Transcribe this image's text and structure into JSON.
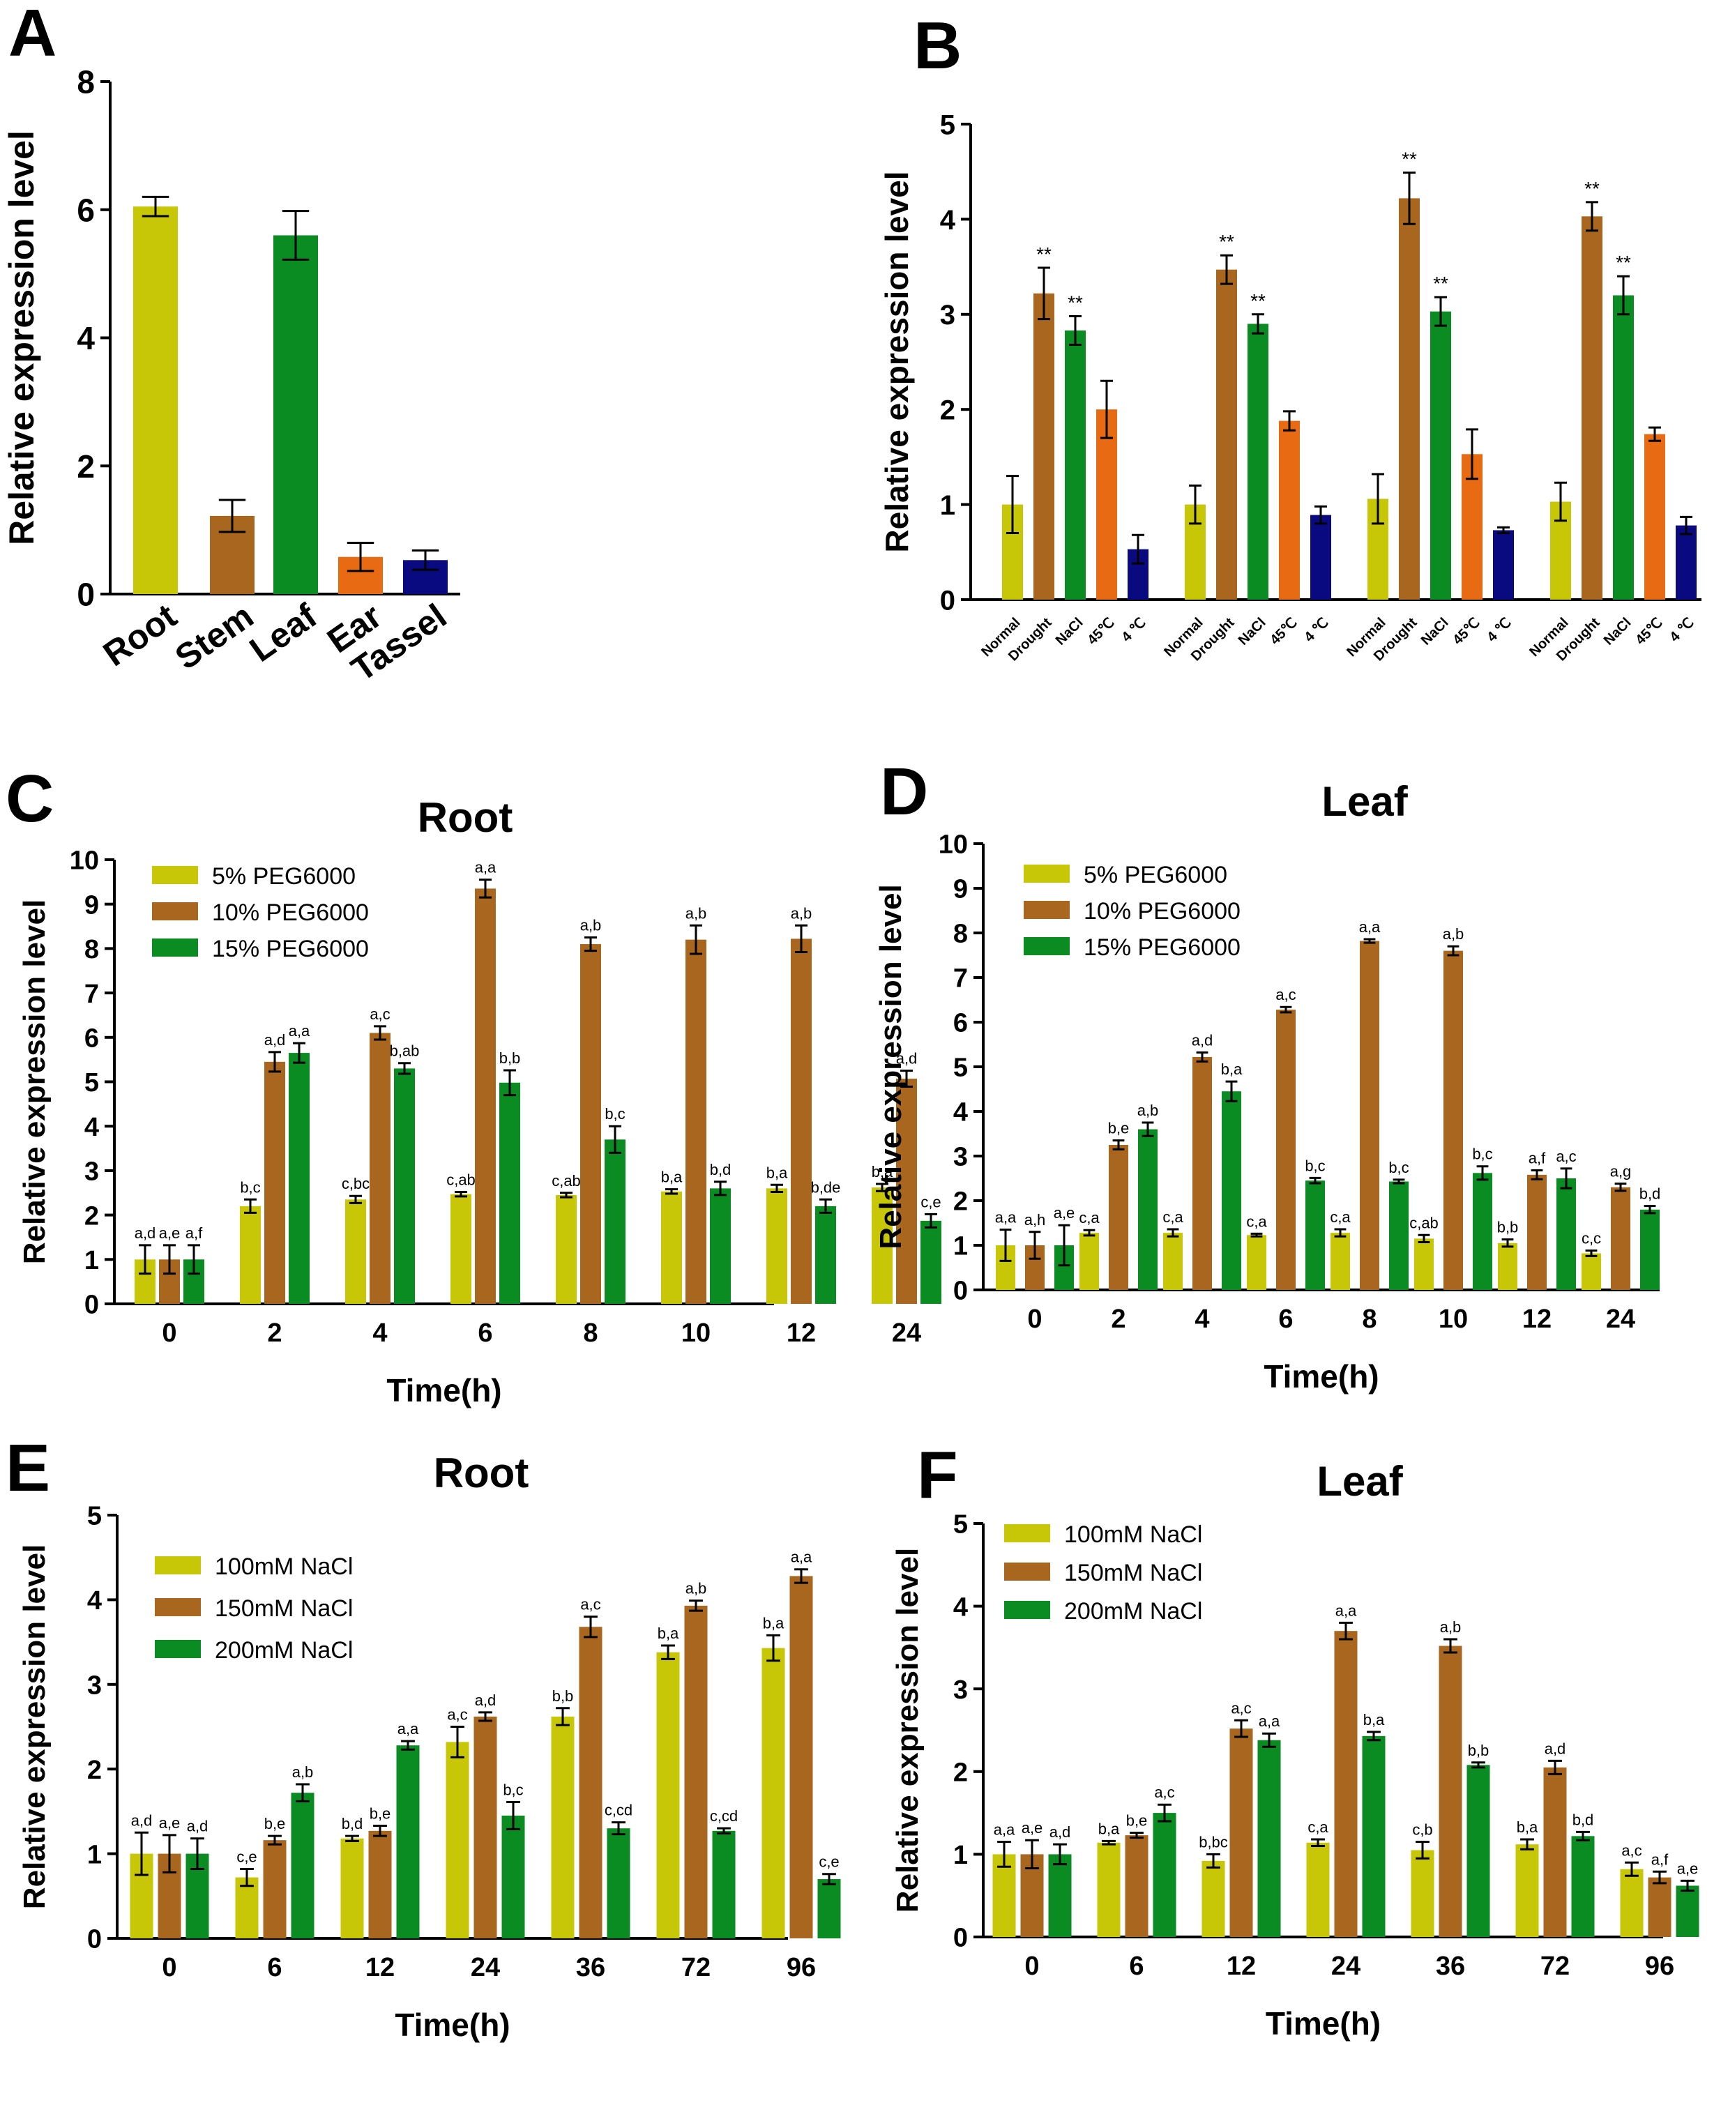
{
  "colors": {
    "yellow": "#c7c708",
    "brown": "#a8661e",
    "green": "#0a8c22",
    "orange": "#e86a12",
    "navy": "#0a0a80",
    "axis": "#000000"
  },
  "chart_data": [
    {
      "panel": "A",
      "type": "bar",
      "title": "",
      "xlabel": "",
      "ylabel": "Relative expression level",
      "ylim": [
        0,
        8
      ],
      "yticks": [
        "0",
        "2",
        "4",
        "6",
        "8"
      ],
      "categories": [
        "Root",
        "Stem",
        "Leaf",
        "Ear",
        "Tassel"
      ],
      "values": [
        6.05,
        1.22,
        5.6,
        0.58,
        0.53
      ],
      "errors": [
        0.15,
        0.25,
        0.38,
        0.22,
        0.15
      ],
      "bar_colors": [
        "#c7c708",
        "#a8661e",
        "#0a8c22",
        "#e86a12",
        "#0a0a80"
      ]
    },
    {
      "panel": "B",
      "type": "bar",
      "title": "",
      "xlabel": "",
      "ylabel": "Relative expression level",
      "ylim": [
        0,
        5
      ],
      "yticks": [
        "0",
        "1",
        "2",
        "3",
        "4",
        "5"
      ],
      "group_count": 4,
      "categories": [
        "Normal",
        "Drought",
        "NaCl",
        "45℃",
        "4 ℃"
      ],
      "series_colors": [
        "#c7c708",
        "#a8661e",
        "#0a8c22",
        "#e86a12",
        "#0a0a80"
      ],
      "groups": [
        {
          "values": [
            1.0,
            3.22,
            2.83,
            2.0,
            0.53
          ],
          "errors": [
            0.3,
            0.27,
            0.15,
            0.3,
            0.15
          ],
          "marks": [
            "",
            "**",
            "**",
            "",
            ""
          ]
        },
        {
          "values": [
            1.0,
            3.47,
            2.9,
            1.88,
            0.89
          ],
          "errors": [
            0.2,
            0.15,
            0.1,
            0.1,
            0.09
          ],
          "marks": [
            "",
            "**",
            "**",
            "",
            ""
          ]
        },
        {
          "values": [
            1.06,
            4.22,
            3.03,
            1.53,
            0.73
          ],
          "errors": [
            0.26,
            0.27,
            0.15,
            0.26,
            0.03
          ],
          "marks": [
            "",
            "**",
            "**",
            "",
            ""
          ]
        },
        {
          "values": [
            1.03,
            4.03,
            3.2,
            1.74,
            0.78
          ],
          "errors": [
            0.2,
            0.15,
            0.2,
            0.07,
            0.09
          ],
          "marks": [
            "",
            "**",
            "**",
            "",
            ""
          ]
        }
      ]
    },
    {
      "panel": "C",
      "type": "bar",
      "title": "Root",
      "xlabel": "Time(h)",
      "ylabel": "Relative expression level",
      "ylim": [
        0,
        10
      ],
      "yticks": [
        "0",
        "1",
        "2",
        "3",
        "4",
        "5",
        "6",
        "7",
        "8",
        "9",
        "10"
      ],
      "categories": [
        "0",
        "2",
        "4",
        "6",
        "8",
        "10",
        "12",
        "24"
      ],
      "series": [
        {
          "name": "5% PEG6000",
          "color": "#c7c708",
          "values": [
            1.0,
            2.2,
            2.35,
            2.47,
            2.45,
            2.53,
            2.6,
            2.62
          ],
          "errors": [
            0.32,
            0.15,
            0.08,
            0.05,
            0.05,
            0.05,
            0.08,
            0.08
          ],
          "labels": [
            "a,d",
            "b,c",
            "c,bc",
            "c,ab",
            "c,ab",
            "b,a",
            "b,a",
            "b,a"
          ]
        },
        {
          "name": "10% PEG6000",
          "color": "#a8661e",
          "values": [
            1.0,
            5.45,
            6.1,
            9.35,
            8.1,
            8.2,
            8.22,
            5.07
          ],
          "errors": [
            0.32,
            0.22,
            0.15,
            0.2,
            0.15,
            0.32,
            0.3,
            0.18
          ],
          "labels": [
            "a,e",
            "a,d",
            "a,c",
            "a,a",
            "a,b",
            "a,b",
            "a,b",
            "a,d"
          ]
        },
        {
          "name": "15% PEG6000",
          "color": "#0a8c22",
          "values": [
            1.0,
            5.65,
            5.3,
            4.98,
            3.7,
            2.6,
            2.2,
            1.87
          ],
          "errors": [
            0.32,
            0.22,
            0.12,
            0.28,
            0.3,
            0.15,
            0.15,
            0.15
          ],
          "labels": [
            "a,f",
            "a,a",
            "b,ab",
            "b,b",
            "b,c",
            "b,d",
            "b,de",
            "c,e"
          ]
        }
      ]
    },
    {
      "panel": "D",
      "type": "bar",
      "title": "Leaf",
      "xlabel": "Time(h)",
      "ylabel": "Relative expression level",
      "ylim": [
        0,
        10
      ],
      "yticks": [
        "0",
        "1",
        "2",
        "3",
        "4",
        "5",
        "6",
        "7",
        "8",
        "9",
        "10"
      ],
      "categories": [
        "0",
        "2",
        "4",
        "6",
        "8",
        "10",
        "12",
        "24"
      ],
      "series": [
        {
          "name": "5% PEG6000",
          "color": "#c7c708",
          "values": [
            1.0,
            1.28,
            1.28,
            1.23,
            1.28,
            1.15,
            1.05,
            0.82
          ],
          "errors": [
            0.35,
            0.06,
            0.08,
            0.03,
            0.08,
            0.08,
            0.08,
            0.06
          ],
          "labels": [
            "a,a",
            "c,a",
            "c,a",
            "c,a",
            "c,a",
            "c,ab",
            "b,b",
            "c,c"
          ]
        },
        {
          "name": "10% PEG6000",
          "color": "#a8661e",
          "values": [
            1.0,
            3.25,
            5.22,
            6.28,
            7.82,
            7.6,
            2.58,
            2.3
          ],
          "errors": [
            0.3,
            0.1,
            0.1,
            0.06,
            0.04,
            0.1,
            0.1,
            0.08
          ],
          "labels": [
            "a,h",
            "b,e",
            "a,d",
            "a,c",
            "a,a",
            "a,b",
            "a,f",
            "a,g"
          ]
        },
        {
          "name": "15% PEG6000",
          "color": "#0a8c22",
          "values": [
            1.0,
            3.6,
            4.45,
            2.45,
            2.43,
            2.62,
            2.5,
            1.8
          ],
          "errors": [
            0.45,
            0.15,
            0.22,
            0.06,
            0.04,
            0.15,
            0.22,
            0.08
          ],
          "labels": [
            "a,e",
            "a,b",
            "b,a",
            "b,c",
            "b,c",
            "b,c",
            "a,c",
            "b,d"
          ]
        }
      ]
    },
    {
      "panel": "E",
      "type": "bar",
      "title": "Root",
      "xlabel": "Time(h)",
      "ylabel": "Relative expression level",
      "ylim": [
        0,
        5
      ],
      "yticks": [
        "0",
        "1",
        "2",
        "3",
        "4",
        "5"
      ],
      "categories": [
        "0",
        "6",
        "12",
        "24",
        "36",
        "72",
        "96"
      ],
      "series": [
        {
          "name": "100mM NaCl",
          "color": "#c7c708",
          "values": [
            1.0,
            0.72,
            1.18,
            2.32,
            2.62,
            3.38,
            3.43
          ],
          "errors": [
            0.25,
            0.1,
            0.03,
            0.18,
            0.1,
            0.08,
            0.15
          ],
          "labels": [
            "a,d",
            "c,e",
            "b,d",
            "a,c",
            "b,b",
            "b,a",
            "b,a"
          ]
        },
        {
          "name": "150mM NaCl",
          "color": "#a8661e",
          "values": [
            1.0,
            1.16,
            1.27,
            2.62,
            3.68,
            3.93,
            4.28
          ],
          "errors": [
            0.22,
            0.05,
            0.06,
            0.05,
            0.12,
            0.06,
            0.08
          ],
          "labels": [
            "a,e",
            "b,e",
            "b,e",
            "a,d",
            "a,c",
            "a,b",
            "a,a"
          ]
        },
        {
          "name": "200mM NaCl",
          "color": "#0a8c22",
          "values": [
            1.0,
            1.72,
            2.28,
            1.45,
            1.3,
            1.27,
            0.7
          ],
          "errors": [
            0.18,
            0.1,
            0.05,
            0.16,
            0.07,
            0.03,
            0.06
          ],
          "labels": [
            "a,d",
            "a,b",
            "a,a",
            "b,c",
            "c,cd",
            "c,cd",
            "c,e"
          ]
        }
      ]
    },
    {
      "panel": "F",
      "type": "bar",
      "title": "Leaf",
      "xlabel": "Time(h)",
      "ylabel": "Relative expression level",
      "ylim": [
        0,
        5
      ],
      "yticks": [
        "0",
        "1",
        "2",
        "3",
        "4",
        "5"
      ],
      "categories": [
        "0",
        "6",
        "12",
        "24",
        "36",
        "72",
        "96"
      ],
      "series": [
        {
          "name": "100mM NaCl",
          "color": "#c7c708",
          "values": [
            1.0,
            1.14,
            0.92,
            1.14,
            1.05,
            1.12,
            0.82
          ],
          "errors": [
            0.15,
            0.02,
            0.08,
            0.04,
            0.1,
            0.06,
            0.08
          ],
          "labels": [
            "a,a",
            "b,a",
            "b,bc",
            "c,a",
            "c,b",
            "b,a",
            "a,c"
          ]
        },
        {
          "name": "150mM NaCl",
          "color": "#a8661e",
          "values": [
            1.0,
            1.23,
            2.52,
            3.7,
            3.52,
            2.05,
            0.72
          ],
          "errors": [
            0.17,
            0.03,
            0.1,
            0.1,
            0.08,
            0.08,
            0.07
          ],
          "labels": [
            "a,e",
            "b,e",
            "a,c",
            "a,a",
            "a,b",
            "a,d",
            "a,f"
          ]
        },
        {
          "name": "200mM NaCl",
          "color": "#0a8c22",
          "values": [
            1.0,
            1.5,
            2.38,
            2.43,
            2.08,
            1.22,
            0.62
          ],
          "errors": [
            0.12,
            0.1,
            0.08,
            0.05,
            0.03,
            0.05,
            0.06
          ],
          "labels": [
            "a,d",
            "a,c",
            "a,a",
            "b,a",
            "b,b",
            "b,d",
            "a,e"
          ]
        }
      ]
    }
  ]
}
